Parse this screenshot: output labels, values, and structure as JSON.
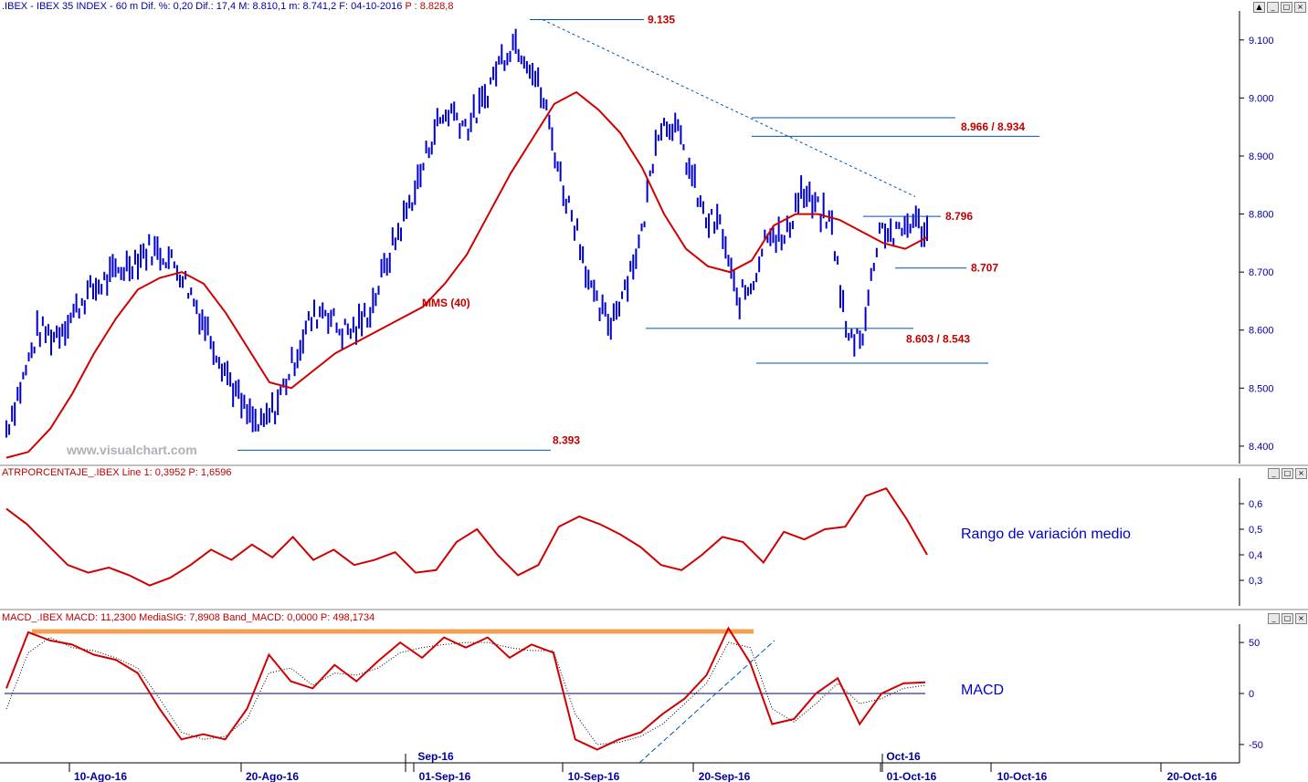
{
  "window": {
    "header_prefix": ".IBEX - IBEX 35 INDEX - 60 m  Dif. %: 0,20  Dif.: 17,4  M: 8.810,1  m: 8.741,2  F: 04-10-2016",
    "header_price": "P : 8.828,8",
    "buttons": [
      "▲",
      "_",
      "□",
      "×"
    ]
  },
  "watermark": "www.visualchart.com",
  "colors": {
    "price_bars": "#0000cc",
    "moving_average": "#d00000",
    "level_lines": "#0055aa",
    "annotation_text": "#c00000",
    "indicator_text": "#0000cc",
    "macd_peak_band": "#f5a050",
    "axis_text": "#0000a0"
  },
  "chart_data": [
    {
      "type": "candlestick",
      "title": ".IBEX - IBEX 35 INDEX - 60 m",
      "ylim": [
        8370,
        9150
      ],
      "y_ticks": [
        "9.100",
        "9.000",
        "8.900",
        "8.800",
        "8.700",
        "8.600",
        "8.500",
        "8.400"
      ],
      "x_ticks": [
        "10-Ago-16",
        "20-Ago-16",
        "01-Sep-16",
        "10-Sep-16",
        "20-Sep-16",
        "01-Oct-16",
        "10-Oct-16",
        "20-Oct-16"
      ],
      "x_month_markers": [
        "Sep-16",
        "Oct-16"
      ],
      "series": [
        {
          "name": "MMS (40)",
          "values": [
            8380,
            8390,
            8430,
            8490,
            8560,
            8620,
            8670,
            8690,
            8700,
            8680,
            8630,
            8570,
            8510,
            8500,
            8530,
            8560,
            8580,
            8600,
            8620,
            8640,
            8680,
            8730,
            8800,
            8870,
            8930,
            8990,
            9010,
            8980,
            8940,
            8880,
            8800,
            8740,
            8710,
            8700,
            8720,
            8780,
            8800,
            8800,
            8790,
            8770,
            8750,
            8740,
            8760
          ]
        },
        {
          "name": "price",
          "values": [
            8430,
            8510,
            8600,
            8590,
            8620,
            8660,
            8680,
            8700,
            8720,
            8740,
            8730,
            8700,
            8640,
            8580,
            8520,
            8460,
            8430,
            8470,
            8540,
            8610,
            8640,
            8600,
            8600,
            8640,
            8720,
            8790,
            8860,
            8950,
            8980,
            8950,
            8990,
            9060,
            9100,
            9060,
            8980,
            8850,
            8770,
            8650,
            8610,
            8680,
            8760,
            8950,
            8960,
            8880,
            8790,
            8780,
            8650,
            8680,
            8780,
            8750,
            8840,
            8810,
            8780,
            8580,
            8600,
            8780,
            8760,
            8790,
            8770
          ]
        }
      ],
      "levels": [
        {
          "label": "9.135",
          "value": 9135
        },
        {
          "label": "8.966 / 8.934",
          "value_top": 8966,
          "value_bottom": 8934
        },
        {
          "label": "8.796",
          "value": 8796
        },
        {
          "label": "8.707",
          "value": 8707
        },
        {
          "label": "8.603 / 8.543",
          "value_top": 8603,
          "value_bottom": 8543
        },
        {
          "label": "8.393",
          "value": 8393
        }
      ],
      "trendline": {
        "from": 9135,
        "to": 8830,
        "style": "dotted"
      }
    },
    {
      "type": "line",
      "title": "ATRPORCENTAJE_.IBEX Line 1: 0,3952  P: 1,6596",
      "ylim": [
        0.2,
        0.7
      ],
      "y_ticks": [
        "0,6",
        "0,5",
        "0,4",
        "0,3"
      ],
      "annotation": "Rango de variación medio",
      "series": [
        {
          "name": "Line 1",
          "values": [
            0.58,
            0.52,
            0.44,
            0.36,
            0.33,
            0.35,
            0.32,
            0.28,
            0.31,
            0.36,
            0.42,
            0.38,
            0.44,
            0.39,
            0.47,
            0.38,
            0.42,
            0.36,
            0.38,
            0.41,
            0.33,
            0.34,
            0.45,
            0.5,
            0.4,
            0.32,
            0.36,
            0.51,
            0.55,
            0.52,
            0.48,
            0.43,
            0.36,
            0.34,
            0.4,
            0.47,
            0.45,
            0.37,
            0.49,
            0.46,
            0.5,
            0.51,
            0.63,
            0.66,
            0.54,
            0.4
          ]
        }
      ]
    },
    {
      "type": "line",
      "title": "MACD_.IBEX MACD: 11,2300  MediaSIG: 7,8908  Band_MACD: 0,0000  P: 498,1734",
      "ylim": [
        -68,
        68
      ],
      "y_ticks": [
        "50",
        "0",
        "-50"
      ],
      "annotation": "MACD",
      "series": [
        {
          "name": "MACD",
          "values": [
            5,
            60,
            52,
            48,
            38,
            33,
            20,
            -15,
            -45,
            -40,
            -45,
            -15,
            38,
            12,
            5,
            28,
            12,
            32,
            50,
            35,
            55,
            45,
            55,
            35,
            48,
            40,
            -45,
            -55,
            -45,
            -38,
            -20,
            -5,
            18,
            64,
            30,
            -30,
            -25,
            0,
            15,
            -30,
            0,
            10,
            11
          ]
        },
        {
          "name": "MediaSIG",
          "values": [
            -15,
            40,
            55,
            45,
            42,
            35,
            25,
            -5,
            -38,
            -45,
            -42,
            -25,
            20,
            25,
            8,
            20,
            18,
            25,
            40,
            45,
            48,
            50,
            50,
            45,
            42,
            42,
            -20,
            -50,
            -48,
            -42,
            -30,
            -10,
            10,
            50,
            45,
            -15,
            -28,
            -10,
            10,
            -10,
            -5,
            5,
            8
          ]
        }
      ]
    }
  ]
}
